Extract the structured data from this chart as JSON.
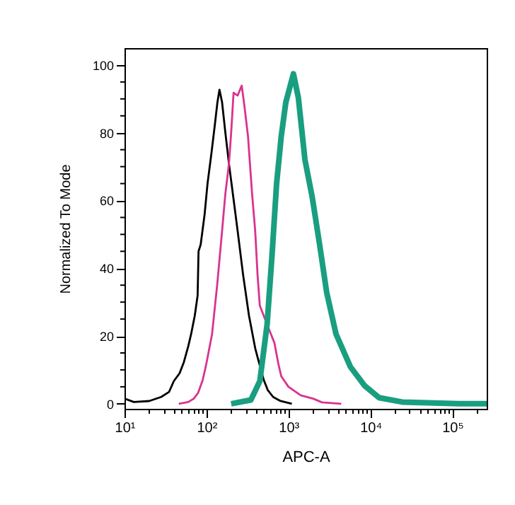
{
  "chart_data": {
    "type": "line",
    "xlabel": "APC-A",
    "ylabel": "Normalized To Mode",
    "log": "x",
    "grid": false,
    "marker": "none",
    "line_style": "solid",
    "xlim": [
      10,
      262144
    ],
    "ylim": [
      -1.5,
      105
    ],
    "xticks": [
      {
        "value": 10,
        "label": "10¹"
      },
      {
        "value": 20,
        "label": null
      },
      {
        "value": 30,
        "label": null
      },
      {
        "value": 40,
        "label": null
      },
      {
        "value": 50,
        "label": null
      },
      {
        "value": 60,
        "label": null
      },
      {
        "value": 70,
        "label": null
      },
      {
        "value": 80,
        "label": null
      },
      {
        "value": 90,
        "label": null
      },
      {
        "value": 100,
        "label": "10²"
      },
      {
        "value": 200,
        "label": null
      },
      {
        "value": 300,
        "label": null
      },
      {
        "value": 400,
        "label": null
      },
      {
        "value": 500,
        "label": null
      },
      {
        "value": 600,
        "label": null
      },
      {
        "value": 700,
        "label": null
      },
      {
        "value": 800,
        "label": null
      },
      {
        "value": 900,
        "label": null
      },
      {
        "value": 1000,
        "label": "10³"
      },
      {
        "value": 2000,
        "label": null
      },
      {
        "value": 3000,
        "label": null
      },
      {
        "value": 4000,
        "label": null
      },
      {
        "value": 5000,
        "label": null
      },
      {
        "value": 6000,
        "label": null
      },
      {
        "value": 7000,
        "label": null
      },
      {
        "value": 8000,
        "label": null
      },
      {
        "value": 9000,
        "label": null
      },
      {
        "value": 10000,
        "label": "10⁴"
      },
      {
        "value": 20000,
        "label": null
      },
      {
        "value": 30000,
        "label": null
      },
      {
        "value": 40000,
        "label": null
      },
      {
        "value": 50000,
        "label": null
      },
      {
        "value": 60000,
        "label": null
      },
      {
        "value": 70000,
        "label": null
      },
      {
        "value": 80000,
        "label": null
      },
      {
        "value": 90000,
        "label": null
      },
      {
        "value": 100000,
        "label": "10⁵"
      },
      {
        "value": 200000,
        "label": null
      }
    ],
    "yticks": [
      0,
      {
        "value": 5,
        "label": null
      },
      {
        "value": 10,
        "label": null
      },
      {
        "value": 15,
        "label": null
      },
      20,
      {
        "value": 25,
        "label": null
      },
      {
        "value": 30,
        "label": null
      },
      {
        "value": 35,
        "label": null
      },
      40,
      {
        "value": 45,
        "label": null
      },
      {
        "value": 50,
        "label": null
      },
      {
        "value": 55,
        "label": null
      },
      60,
      {
        "value": 65,
        "label": null
      },
      {
        "value": 70,
        "label": null
      },
      {
        "value": 75,
        "label": null
      },
      80,
      {
        "value": 85,
        "label": null
      },
      {
        "value": 90,
        "label": null
      },
      {
        "value": 95,
        "label": null
      },
      100
    ],
    "series": [
      {
        "color": "#000000",
        "x": [
          10,
          13,
          20,
          28,
          35,
          40,
          47,
          53,
          60,
          65,
          72,
          78,
          80,
          85,
          95,
          103,
          115,
          126,
          136,
          144,
          155,
          170,
          190,
          215,
          240,
          280,
          330,
          393,
          450,
          500,
          560,
          650,
          800,
          1100
        ],
        "values": [
          1.5,
          0.5,
          0.8,
          2,
          3.5,
          6.7,
          9,
          12.3,
          17,
          20.6,
          26,
          32,
          45,
          47,
          56,
          65,
          74,
          82,
          89,
          92.7,
          89,
          80,
          70,
          60,
          51,
          38,
          26,
          16.4,
          11,
          7,
          4,
          2,
          0.8,
          0
        ]
      },
      {
        "color": "#d9338f",
        "x": [
          46,
          60,
          70,
          79,
          90,
          100,
          117,
          135,
          155,
          170,
          188,
          200,
          214,
          240,
          269,
          290,
          321,
          360,
          393,
          420,
          447,
          549,
          675,
          750,
          817,
          1000,
          1410,
          2000,
          2570,
          4400
        ],
        "values": [
          0,
          0.5,
          1.5,
          3.2,
          7,
          12,
          20.6,
          35,
          51,
          62,
          70.8,
          80,
          91.8,
          91,
          93.9,
          88,
          79,
          62,
          51,
          38,
          29,
          23.4,
          17.9,
          12,
          8.1,
          5,
          2.5,
          1.5,
          0.4,
          0
        ]
      },
      {
        "color": "#1a9e80",
        "x": [
          200,
          348,
          448,
          549,
          631,
          717,
          817,
          929,
          1150,
          1320,
          1590,
          1950,
          2400,
          2920,
          3800,
          5700,
          8500,
          12700,
          24500,
          120000,
          262144
        ],
        "values": [
          0,
          1.1,
          6.7,
          23.4,
          44,
          65,
          79,
          89,
          97.4,
          90.4,
          72,
          61,
          47,
          33,
          20.6,
          10.9,
          5.3,
          1.8,
          0.5,
          0,
          0
        ]
      }
    ]
  }
}
